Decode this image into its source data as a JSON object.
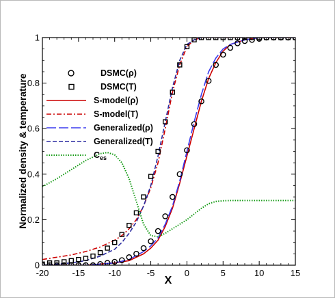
{
  "chart_data": {
    "type": "line",
    "xlabel": "X",
    "ylabel": "Normalized density & temperature",
    "xlim": [
      -20,
      15
    ],
    "ylim": [
      0,
      1
    ],
    "xticks": [
      -20,
      -15,
      -10,
      -5,
      0,
      5,
      10,
      15
    ],
    "yticks": [
      0,
      0.2,
      0.4,
      0.6,
      0.8,
      1
    ],
    "xtick_labels": [
      "-20",
      "-15",
      "-10",
      "-5",
      "0",
      "5",
      "10",
      "15"
    ],
    "ytick_labels": [
      "0",
      "0.2",
      "0.4",
      "0.6",
      "0.8",
      "1"
    ],
    "grid": false,
    "legend_position": "upper-left",
    "series": [
      {
        "name": "DSMC(ρ)",
        "style": "circle-markers",
        "color": "#000000",
        "x": [
          -20,
          -19,
          -18,
          -17,
          -16,
          -15,
          -14,
          -13,
          -12,
          -11,
          -10,
          -9,
          -8,
          -7,
          -6,
          -5,
          -4,
          -3,
          -2,
          -1,
          0,
          1,
          2,
          3,
          4,
          5,
          6,
          7,
          8,
          9,
          10,
          11,
          12,
          13,
          14,
          15
        ],
        "y": [
          0,
          0,
          0,
          0,
          0,
          0,
          0,
          0,
          0.005,
          0.01,
          0.015,
          0.022,
          0.035,
          0.05,
          0.075,
          0.105,
          0.15,
          0.215,
          0.3,
          0.4,
          0.505,
          0.62,
          0.72,
          0.81,
          0.88,
          0.925,
          0.955,
          0.975,
          0.985,
          0.99,
          0.995,
          1,
          1,
          1,
          1,
          1
        ]
      },
      {
        "name": "DSMC(T)",
        "style": "square-markers",
        "color": "#000000",
        "x": [
          -20,
          -19,
          -18,
          -17,
          -16,
          -15,
          -14,
          -13,
          -12,
          -11,
          -10,
          -9,
          -8,
          -7,
          -6,
          -5,
          -4,
          -3,
          -2,
          -1,
          0,
          1,
          2,
          3,
          4,
          5,
          6,
          7,
          8,
          9,
          10,
          11,
          12,
          13,
          14,
          15
        ],
        "y": [
          0.005,
          0.01,
          0.01,
          0.015,
          0.02,
          0.025,
          0.03,
          0.04,
          0.055,
          0.075,
          0.1,
          0.135,
          0.175,
          0.23,
          0.3,
          0.39,
          0.5,
          0.63,
          0.76,
          0.88,
          0.96,
          0.99,
          1,
          1,
          1,
          1,
          1,
          1,
          1,
          1,
          1,
          1,
          1,
          1,
          1,
          1
        ]
      },
      {
        "name": "S-model(ρ)",
        "style": "solid",
        "color": "#cc0000",
        "x": [
          -20,
          -18,
          -16,
          -14,
          -12,
          -10,
          -8,
          -6,
          -5,
          -4,
          -3,
          -2,
          -1,
          0,
          1,
          2,
          3,
          4,
          5,
          6,
          8,
          10,
          12,
          15
        ],
        "y": [
          0,
          0,
          0,
          0,
          0.005,
          0.01,
          0.02,
          0.05,
          0.075,
          0.11,
          0.17,
          0.25,
          0.36,
          0.48,
          0.6,
          0.72,
          0.82,
          0.89,
          0.94,
          0.97,
          0.99,
          1,
          1,
          1
        ]
      },
      {
        "name": "S-model(T)",
        "style": "dash-dot",
        "color": "#cc0000",
        "x": [
          -20,
          -18,
          -16,
          -14,
          -12,
          -10,
          -9,
          -8,
          -7,
          -6,
          -5,
          -4,
          -3,
          -2,
          -1,
          0,
          1,
          2,
          3,
          5,
          8,
          10,
          15
        ],
        "y": [
          0.025,
          0.035,
          0.045,
          0.06,
          0.08,
          0.11,
          0.13,
          0.16,
          0.2,
          0.26,
          0.34,
          0.45,
          0.6,
          0.76,
          0.88,
          0.96,
          0.99,
          1,
          1,
          1,
          1,
          1,
          1
        ]
      },
      {
        "name": "Generalized(ρ)",
        "style": "long-dash",
        "color": "#3a3aee",
        "x": [
          -20,
          -18,
          -16,
          -14,
          -12,
          -10,
          -8,
          -6,
          -5,
          -4,
          -3,
          -2,
          -1,
          0,
          1,
          2,
          3,
          4,
          5,
          6,
          8,
          10,
          12,
          15
        ],
        "y": [
          0,
          0,
          0,
          0,
          0.005,
          0.01,
          0.025,
          0.06,
          0.085,
          0.12,
          0.18,
          0.26,
          0.37,
          0.5,
          0.63,
          0.75,
          0.85,
          0.91,
          0.95,
          0.97,
          0.99,
          1,
          1,
          1
        ]
      },
      {
        "name": "Generalized(T)",
        "style": "dash",
        "color": "#2a2aa0",
        "x": [
          -20,
          -18,
          -16,
          -14,
          -12,
          -10,
          -9,
          -8,
          -7,
          -6,
          -5,
          -4,
          -3,
          -2,
          -1,
          0,
          1,
          2,
          3,
          5,
          8,
          10,
          15
        ],
        "y": [
          0,
          0.005,
          0.01,
          0.02,
          0.04,
          0.07,
          0.1,
          0.14,
          0.19,
          0.26,
          0.35,
          0.48,
          0.63,
          0.78,
          0.9,
          0.97,
          0.99,
          1,
          1,
          1,
          1,
          1,
          1
        ]
      },
      {
        "name": "C",
        "name_subscript": "es",
        "style": "dotted",
        "color": "#119911",
        "x": [
          -20,
          -18,
          -16,
          -14,
          -12,
          -11,
          -10,
          -9,
          -8,
          -7,
          -6,
          -5,
          -4,
          -3,
          -2,
          -1,
          0,
          1,
          2,
          3,
          4,
          5,
          6,
          8,
          10,
          15
        ],
        "y": [
          0.345,
          0.38,
          0.42,
          0.46,
          0.49,
          0.495,
          0.485,
          0.45,
          0.38,
          0.28,
          0.18,
          0.13,
          0.125,
          0.14,
          0.16,
          0.18,
          0.2,
          0.225,
          0.25,
          0.27,
          0.28,
          0.283,
          0.284,
          0.284,
          0.284,
          0.284
        ]
      }
    ]
  }
}
